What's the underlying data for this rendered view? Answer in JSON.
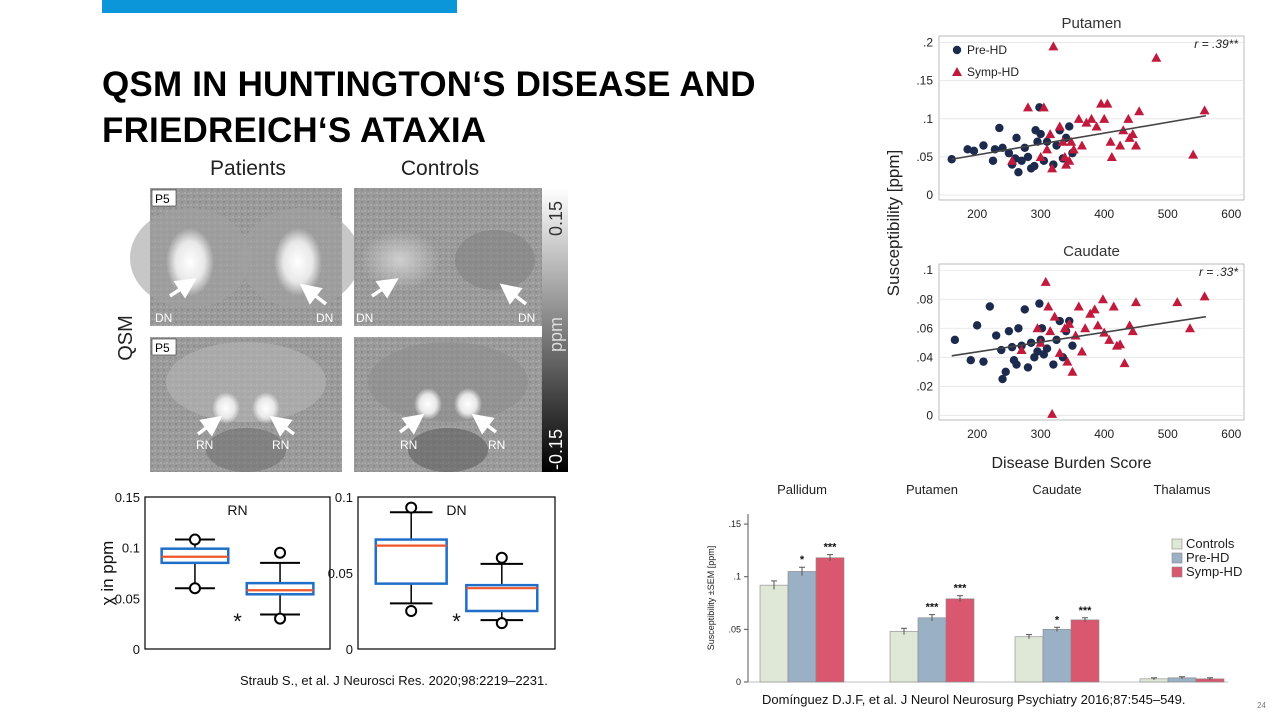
{
  "slide": {
    "title_lines": [
      "QSM IN HUNTINGTON‘S DISEASE AND",
      "FRIEDREICH‘S ATAXIA"
    ],
    "slide_number": "24",
    "accent_color": "#0a96d8"
  },
  "figure_left": {
    "col_labels": [
      "Patients",
      "Controls"
    ],
    "row_label": "QSM",
    "panel_tags": [
      "P5",
      "P5"
    ],
    "colorbar_label": "ppm",
    "colorbar_top": "0.15",
    "colorbar_bottom": "-0.15",
    "arrow_labels": {
      "dn": "DN",
      "rn": "RN"
    }
  },
  "caption_left": "Straub S., et al. J Neurosci Res. 2020;98:2219–2231.",
  "caption_right": "Domínguez D.J.F, et al. J Neurol Neurosurg Psychiatry 2016;87:545–549.",
  "colors": {
    "pre_hd": "#1c2a4d",
    "symp_hd": "#c01a3c",
    "controls_bar": "#dfe8d6",
    "prehd_bar": "#9ab0c5",
    "symphd_bar": "#d9576f",
    "box_blue": "#1f6fc9",
    "median_orange": "#f0562a"
  },
  "chart_data": [
    {
      "type": "box",
      "title": "RN",
      "ylabel": "χ in ppm",
      "ylim": [
        0,
        0.15
      ],
      "yticks": [
        "0",
        "0.05",
        "0.1",
        "0.15"
      ],
      "groups": [
        {
          "name": "Patients",
          "min": 0.06,
          "q1": 0.085,
          "median": 0.091,
          "q3": 0.099,
          "max": 0.108,
          "outlier_low": 0.06,
          "outlier_high": 0.108
        },
        {
          "name": "Controls",
          "min": 0.034,
          "q1": 0.054,
          "median": 0.058,
          "q3": 0.065,
          "max": 0.085,
          "outlier_low": 0.03,
          "outlier_high": 0.095
        }
      ],
      "significance": "*"
    },
    {
      "type": "box",
      "title": "DN",
      "ylabel": "",
      "ylim": [
        0,
        0.1
      ],
      "yticks": [
        "0",
        "0.05",
        "0.1"
      ],
      "groups": [
        {
          "name": "Patients",
          "min": 0.03,
          "q1": 0.043,
          "median": 0.068,
          "q3": 0.072,
          "max": 0.09,
          "outlier_low": 0.025,
          "outlier_high": 0.093
        },
        {
          "name": "Controls",
          "min": 0.019,
          "q1": 0.025,
          "median": 0.04,
          "q3": 0.042,
          "max": 0.056,
          "outlier_low": 0.017,
          "outlier_high": 0.06
        }
      ],
      "significance": "*"
    },
    {
      "type": "scatter",
      "title": "Putamen",
      "annotation": "r = .39**",
      "ylim": [
        0,
        0.2
      ],
      "yticks": [
        "0",
        ".05",
        ".1",
        ".15",
        ".2"
      ],
      "xlim": [
        140,
        620
      ],
      "xticks": [
        "200",
        "300",
        "400",
        "500",
        "600"
      ],
      "legend": [
        "Pre-HD",
        "Symp-HD"
      ],
      "legend_position": "top-left",
      "trend": [
        [
          160,
          0.047
        ],
        [
          560,
          0.104
        ]
      ],
      "series": [
        {
          "name": "Pre-HD",
          "marker": "circle",
          "points": [
            [
              160,
              0.047
            ],
            [
              185,
              0.06
            ],
            [
              195,
              0.058
            ],
            [
              210,
              0.065
            ],
            [
              225,
              0.045
            ],
            [
              228,
              0.06
            ],
            [
              235,
              0.088
            ],
            [
              240,
              0.062
            ],
            [
              250,
              0.055
            ],
            [
              255,
              0.04
            ],
            [
              260,
              0.048
            ],
            [
              262,
              0.075
            ],
            [
              265,
              0.03
            ],
            [
              270,
              0.045
            ],
            [
              275,
              0.062
            ],
            [
              280,
              0.05
            ],
            [
              285,
              0.035
            ],
            [
              290,
              0.038
            ],
            [
              292,
              0.085
            ],
            [
              295,
              0.07
            ],
            [
              298,
              0.115
            ],
            [
              300,
              0.08
            ],
            [
              305,
              0.045
            ],
            [
              310,
              0.07
            ],
            [
              320,
              0.04
            ],
            [
              325,
              0.065
            ],
            [
              330,
              0.085
            ],
            [
              335,
              0.048
            ],
            [
              340,
              0.075
            ],
            [
              345,
              0.09
            ],
            [
              350,
              0.055
            ]
          ]
        },
        {
          "name": "Symp-HD",
          "marker": "triangle",
          "points": [
            [
              255,
              0.045
            ],
            [
              280,
              0.115
            ],
            [
              300,
              0.05
            ],
            [
              305,
              0.115
            ],
            [
              310,
              0.06
            ],
            [
              315,
              0.08
            ],
            [
              318,
              0.035
            ],
            [
              320,
              0.195
            ],
            [
              330,
              0.09
            ],
            [
              335,
              0.07
            ],
            [
              338,
              0.05
            ],
            [
              340,
              0.04
            ],
            [
              345,
              0.045
            ],
            [
              348,
              0.07
            ],
            [
              352,
              0.06
            ],
            [
              360,
              0.1
            ],
            [
              365,
              0.065
            ],
            [
              372,
              0.095
            ],
            [
              380,
              0.1
            ],
            [
              388,
              0.09
            ],
            [
              395,
              0.12
            ],
            [
              400,
              0.1
            ],
            [
              405,
              0.12
            ],
            [
              410,
              0.07
            ],
            [
              412,
              0.05
            ],
            [
              425,
              0.065
            ],
            [
              430,
              0.085
            ],
            [
              438,
              0.1
            ],
            [
              440,
              0.075
            ],
            [
              445,
              0.08
            ],
            [
              450,
              0.065
            ],
            [
              455,
              0.11
            ],
            [
              482,
              0.18
            ],
            [
              540,
              0.053
            ],
            [
              558,
              0.111
            ]
          ]
        }
      ]
    },
    {
      "type": "scatter",
      "title": "Caudate",
      "annotation": "r = .33*",
      "xlabel": "Disease Burden Score",
      "ylabel": "Susceptibility [ppm]",
      "ylim": [
        0,
        0.1
      ],
      "yticks": [
        "0",
        ".02",
        ".04",
        ".06",
        ".08",
        ".1"
      ],
      "xlim": [
        140,
        620
      ],
      "xticks": [
        "200",
        "300",
        "400",
        "500",
        "600"
      ],
      "trend": [
        [
          160,
          0.041
        ],
        [
          560,
          0.068
        ]
      ],
      "series": [
        {
          "name": "Pre-HD",
          "marker": "circle",
          "points": [
            [
              165,
              0.052
            ],
            [
              190,
              0.038
            ],
            [
              200,
              0.062
            ],
            [
              210,
              0.037
            ],
            [
              220,
              0.075
            ],
            [
              230,
              0.055
            ],
            [
              238,
              0.045
            ],
            [
              240,
              0.025
            ],
            [
              245,
              0.03
            ],
            [
              250,
              0.058
            ],
            [
              255,
              0.047
            ],
            [
              258,
              0.038
            ],
            [
              262,
              0.035
            ],
            [
              265,
              0.06
            ],
            [
              270,
              0.048
            ],
            [
              275,
              0.073
            ],
            [
              280,
              0.033
            ],
            [
              285,
              0.05
            ],
            [
              290,
              0.04
            ],
            [
              295,
              0.044
            ],
            [
              298,
              0.077
            ],
            [
              300,
              0.052
            ],
            [
              302,
              0.06
            ],
            [
              305,
              0.042
            ],
            [
              310,
              0.046
            ],
            [
              320,
              0.035
            ],
            [
              325,
              0.052
            ],
            [
              330,
              0.065
            ],
            [
              335,
              0.04
            ],
            [
              340,
              0.058
            ],
            [
              345,
              0.065
            ],
            [
              350,
              0.048
            ]
          ]
        },
        {
          "name": "Symp-HD",
          "marker": "triangle",
          "points": [
            [
              270,
              0.045
            ],
            [
              295,
              0.06
            ],
            [
              300,
              0.05
            ],
            [
              308,
              0.092
            ],
            [
              312,
              0.075
            ],
            [
              315,
              0.058
            ],
            [
              318,
              0.001
            ],
            [
              322,
              0.068
            ],
            [
              330,
              0.043
            ],
            [
              338,
              0.06
            ],
            [
              342,
              0.037
            ],
            [
              345,
              0.063
            ],
            [
              350,
              0.03
            ],
            [
              355,
              0.055
            ],
            [
              360,
              0.075
            ],
            [
              365,
              0.044
            ],
            [
              370,
              0.06
            ],
            [
              378,
              0.07
            ],
            [
              385,
              0.073
            ],
            [
              390,
              0.062
            ],
            [
              398,
              0.08
            ],
            [
              400,
              0.057
            ],
            [
              408,
              0.052
            ],
            [
              415,
              0.075
            ],
            [
              420,
              0.048
            ],
            [
              425,
              0.049
            ],
            [
              432,
              0.036
            ],
            [
              440,
              0.062
            ],
            [
              445,
              0.058
            ],
            [
              450,
              0.078
            ],
            [
              515,
              0.078
            ],
            [
              535,
              0.06
            ],
            [
              558,
              0.082
            ]
          ]
        }
      ]
    },
    {
      "type": "bar",
      "categories": [
        "Pallidum",
        "Putamen",
        "Caudate",
        "Thalamus"
      ],
      "ylabel": "Susceptibility ±SEM [ppm]",
      "ylim": [
        0,
        0.15
      ],
      "yticks": [
        "0",
        ".05",
        ".1",
        ".15"
      ],
      "legend": [
        "Controls",
        "Pre-HD",
        "Symp-HD"
      ],
      "legend_position": "right",
      "series": [
        {
          "name": "Controls",
          "values": [
            0.092,
            0.048,
            0.043,
            0.003
          ],
          "sem": [
            0.004,
            0.003,
            0.002,
            0.001
          ],
          "sig": [
            "",
            "",
            "",
            ""
          ]
        },
        {
          "name": "Pre-HD",
          "values": [
            0.105,
            0.061,
            0.05,
            0.004
          ],
          "sem": [
            0.004,
            0.003,
            0.002,
            0.001
          ],
          "sig": [
            "*",
            "***",
            "*",
            ""
          ]
        },
        {
          "name": "Symp-HD",
          "values": [
            0.118,
            0.079,
            0.059,
            0.003
          ],
          "sem": [
            0.003,
            0.003,
            0.002,
            0.001
          ],
          "sig": [
            "***",
            "***",
            "***",
            ""
          ]
        }
      ]
    }
  ]
}
